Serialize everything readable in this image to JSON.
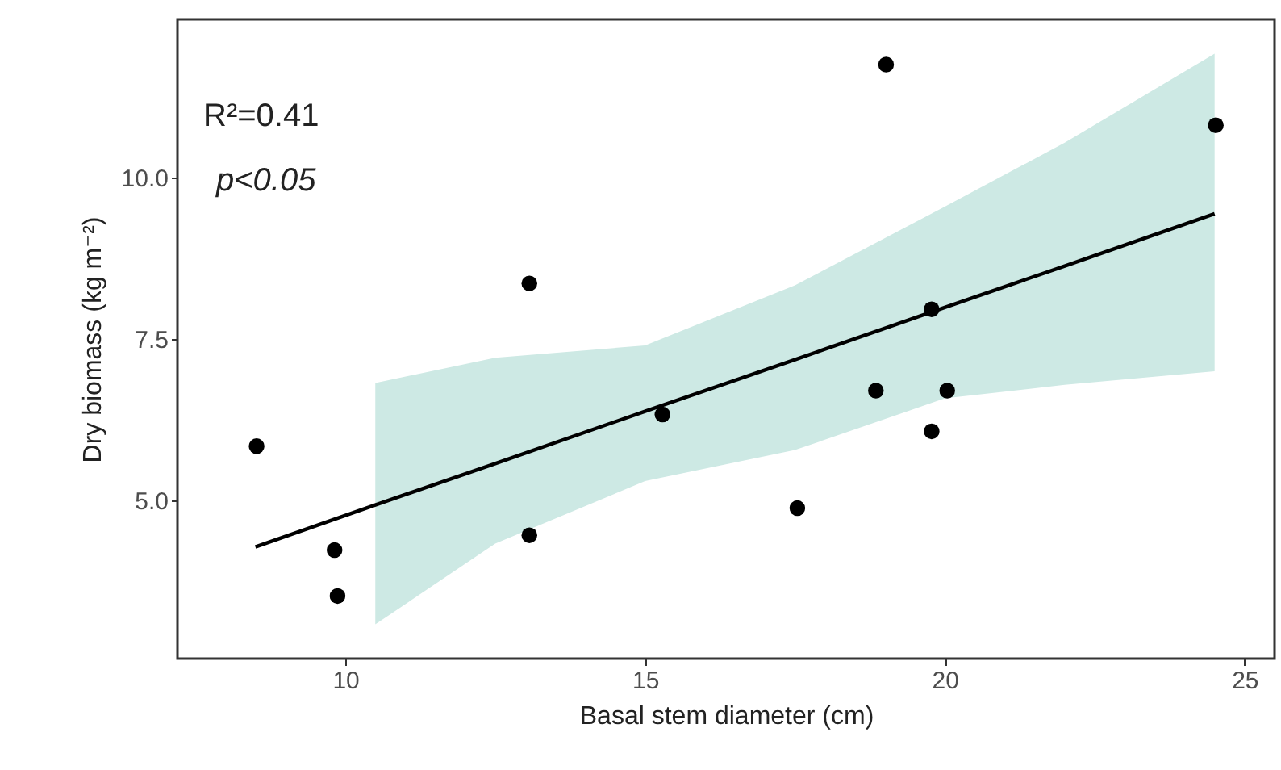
{
  "chart_data": {
    "type": "scatter",
    "xlabel": "Basal stem diameter (cm)",
    "ylabel": "Dry biomass (kg m⁻²)",
    "annotations": [
      "R²=0.41",
      "p<0.05"
    ],
    "xlim": [
      7.2,
      25.5
    ],
    "xticks": [
      10,
      15,
      20,
      25
    ],
    "ylim": [
      2.55,
      12.45
    ],
    "yticks": [
      {
        "value": 5,
        "label": "5.0"
      },
      {
        "value": 7.5,
        "label": "7.5"
      },
      {
        "value": 10,
        "label": "10.0"
      }
    ],
    "grid": false,
    "marker": "circle",
    "series": [
      {
        "type": "line",
        "marker": "none",
        "color": "#000000",
        "x": [
          8.5,
          10.5,
          12.5,
          15,
          17.5,
          20,
          22,
          24.5
        ],
        "values": [
          4.28,
          4.93,
          5.57,
          6.38,
          7.18,
          7.99,
          8.63,
          9.44
        ],
        "lower": [
          null,
          3.08,
          4.33,
          5.3,
          5.78,
          6.58,
          6.79,
          7.0
        ],
        "upper": [
          null,
          6.82,
          7.21,
          7.4,
          8.33,
          9.55,
          10.54,
          11.92
        ]
      },
      {
        "color": "#000000",
        "x": [
          8.52,
          9.82,
          9.87,
          13.07,
          13.07,
          15.29,
          17.54,
          18.85,
          19.02,
          19.78,
          19.78,
          20.04,
          24.52
        ],
        "values": [
          5.84,
          4.23,
          3.52,
          8.36,
          4.46,
          6.33,
          4.88,
          6.7,
          11.75,
          7.96,
          6.07,
          6.7,
          10.81
        ]
      }
    ]
  }
}
